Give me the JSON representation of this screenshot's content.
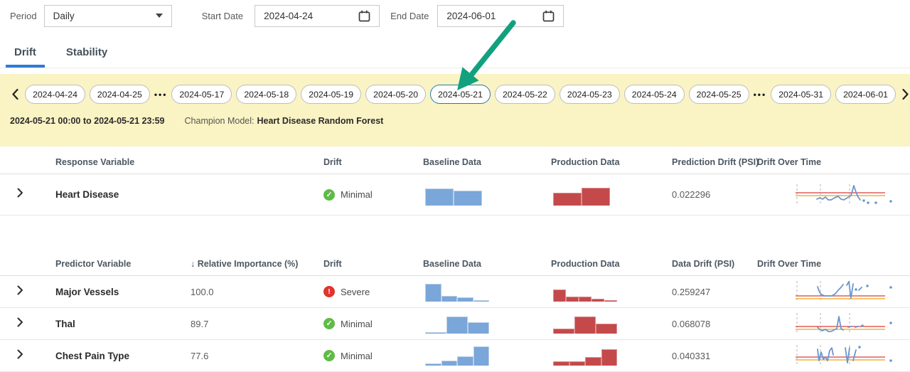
{
  "filter_bar": {
    "period_label": "Period",
    "period_value": "Daily",
    "start_date_label": "Start Date",
    "start_date_value": "2024-04-24",
    "end_date_label": "End Date",
    "end_date_value": "2024-06-01"
  },
  "tabs": [
    {
      "label": "Drift",
      "active": true
    },
    {
      "label": "Stability",
      "active": false
    }
  ],
  "date_strip": {
    "items": [
      {
        "type": "pill",
        "label": "2024-04-24"
      },
      {
        "type": "pill",
        "label": "2024-04-25"
      },
      {
        "type": "ellipsis",
        "label": "•••"
      },
      {
        "type": "pill",
        "label": "2024-05-17"
      },
      {
        "type": "pill",
        "label": "2024-05-18"
      },
      {
        "type": "pill",
        "label": "2024-05-19"
      },
      {
        "type": "pill",
        "label": "2024-05-20"
      },
      {
        "type": "pill",
        "label": "2024-05-21",
        "selected": true
      },
      {
        "type": "pill",
        "label": "2024-05-22"
      },
      {
        "type": "pill",
        "label": "2024-05-23"
      },
      {
        "type": "pill",
        "label": "2024-05-24"
      },
      {
        "type": "pill",
        "label": "2024-05-25"
      },
      {
        "type": "ellipsis",
        "label": "•••"
      },
      {
        "type": "pill",
        "label": "2024-05-31"
      },
      {
        "type": "pill",
        "label": "2024-06-01"
      }
    ],
    "range_text": "2024-05-21 00:00 to 2024-05-21 23:59",
    "champion_label": "Champion Model:",
    "champion_value": "Heart Disease Random Forest"
  },
  "response_table": {
    "header": {
      "variable": "Response Variable",
      "drift": "Drift",
      "baseline": "Baseline Data",
      "production": "Production Data",
      "psi": "Prediction Drift (PSI)",
      "over_time": "Drift Over Time"
    },
    "rows": [
      {
        "name": "Heart Disease",
        "drift_status": "Minimal",
        "drift_level": "minimal",
        "psi": "0.022296",
        "baseline_bars": [
          78,
          68
        ],
        "production_bars": [
          60,
          82
        ],
        "spark": {
          "guides": [
            4,
            37,
            78
          ],
          "red": 13,
          "orange": 17,
          "lines": [
            "32,22 36,20 40,22 44,19 48,23 52,23 57,20 62,18 66,22 70,23 75,20 80,17 84,3 87,12 90,19 93,23"
          ],
          "dots": [
            [
              98,
              24
            ],
            [
              104,
              27
            ],
            [
              115,
              27
            ],
            [
              136,
              25
            ]
          ]
        }
      }
    ]
  },
  "predictor_table": {
    "sort_icon": "↓",
    "header": {
      "variable": "Predictor Variable",
      "importance": "Relative Importance (%)",
      "drift": "Drift",
      "baseline": "Baseline Data",
      "production": "Production Data",
      "psi": "Data Drift (PSI)",
      "over_time": "Drift Over Time"
    },
    "rows": [
      {
        "name": "Major Vessels",
        "importance": "100.0",
        "drift_status": "Severe",
        "drift_level": "severe",
        "psi": "0.259247",
        "baseline_bars": [
          90,
          30,
          20,
          7
        ],
        "production_bars": [
          62,
          26,
          26,
          16,
          7
        ],
        "spark": {
          "guides": [
            4,
            37,
            78
          ],
          "red": 22,
          "orange": 26,
          "lines": [
            "33,9 35,15 38,20 43,22 48,22 53,22 58,19 62,14 66,10 69,6",
            "74,7 77,2 80,25 83,5",
            "91,14 95,10"
          ],
          "dots": [
            [
              87,
              13
            ],
            [
              103,
              8
            ],
            [
              136,
              10
            ]
          ]
        }
      },
      {
        "name": "Thal",
        "importance": "89.7",
        "drift_status": "Minimal",
        "drift_level": "minimal",
        "psi": "0.068078",
        "baseline_bars": [
          7,
          85,
          57
        ],
        "production_bars": [
          24,
          85,
          50
        ],
        "spark": {
          "guides": [
            4,
            37,
            78
          ],
          "red": 20,
          "orange": 24,
          "lines": [
            "33,21 36,24 40,26 44,24 48,27 52,27 56,25 60,23 63,6 66,23 69,25",
            "76,21 80,20",
            "86,21 90,20"
          ],
          "dots": [
            [
              96,
              19
            ],
            [
              136,
              15
            ]
          ]
        }
      },
      {
        "name": "Chest Pain Type",
        "importance": "77.6",
        "drift_status": "Minimal",
        "drift_level": "minimal",
        "psi": "0.040331",
        "baseline_bars": [
          10,
          24,
          48,
          95
        ],
        "production_bars": [
          20,
          20,
          44,
          82
        ],
        "spark": {
          "guides": [
            4,
            37,
            78
          ],
          "red": 18,
          "orange": 22,
          "lines": [
            "33,7 35,23 38,11 41,21 44,18 47,23 50,9 53,5 55,15",
            "72,5 75,26 78,5",
            "83,23 87,8"
          ],
          "dots": [
            [
              92,
              4
            ],
            [
              136,
              23
            ]
          ]
        }
      }
    ]
  },
  "colors": {
    "band_yellow": "#FAF3C4",
    "baseline_bar_blue": "#7AA6D9",
    "production_bar_red": "#C4494B",
    "minimal_green": "#5FBB46",
    "severe_red": "#E0352B",
    "tab_accent_blue": "#2E7CD6",
    "selected_pill_border": "#1D7CAE",
    "annotation_arrow_green": "#12A17E",
    "spark_threshold_red": "#E25B5B",
    "spark_threshold_orange": "#F2B33D",
    "spark_line_blue": "#6B96CE"
  }
}
